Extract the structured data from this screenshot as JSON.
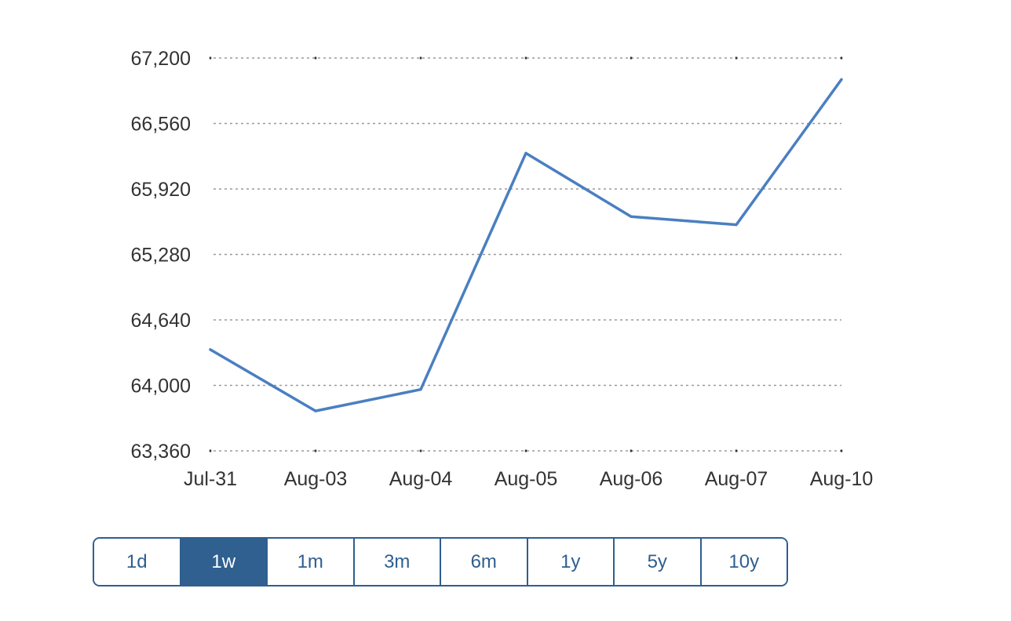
{
  "chart_data": {
    "type": "line",
    "title": "",
    "xlabel": "",
    "ylabel": "",
    "categories": [
      "Jul-31",
      "Aug-03",
      "Aug-04",
      "Aug-05",
      "Aug-06",
      "Aug-07",
      "Aug-10"
    ],
    "series": [
      {
        "values": [
          64350,
          63750,
          63960,
          66270,
          65650,
          65570,
          66990
        ]
      }
    ],
    "y_ticks": [
      63360,
      64000,
      64640,
      65280,
      65920,
      66560,
      67200
    ],
    "y_tick_labels": [
      "63,360",
      "64,000",
      "64,640",
      "65,280",
      "65,920",
      "66,560",
      "67,200"
    ],
    "ylim": [
      63360,
      67200
    ],
    "grid": true,
    "grid_style": "dotted-horizontal",
    "legend": "none",
    "line_color": "#4a7fc1",
    "grid_color": "#9a9a9a"
  },
  "range_selector": {
    "options": [
      "1d",
      "1w",
      "1m",
      "3m",
      "6m",
      "1y",
      "5y",
      "10y"
    ],
    "selected": "1w",
    "accent_color": "#2f6090"
  }
}
